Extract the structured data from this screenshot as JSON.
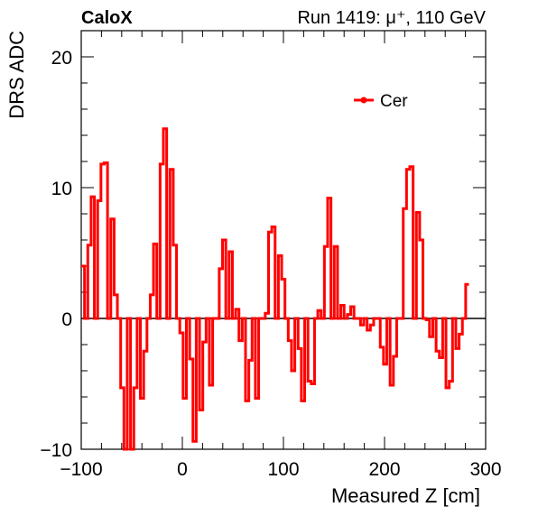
{
  "header": {
    "left_label": "CaloX",
    "right_label": "Run 1419:   μ⁺, 110 GeV"
  },
  "colors": {
    "series": "#ff0000",
    "axis": "#000000",
    "zero_line": "#000000",
    "background": "#ffffff"
  },
  "chart_data": {
    "type": "line",
    "style": "step-histogram",
    "xlabel": "Measured Z [cm]",
    "ylabel": "DRS ADC",
    "xlim": [
      -100,
      300
    ],
    "ylim": [
      -10,
      22
    ],
    "x_ticks": [
      -100,
      0,
      100,
      200,
      300
    ],
    "y_ticks": [
      -10,
      0,
      10,
      20
    ],
    "grid": false,
    "zero_line": true,
    "legend": {
      "position": "top-right",
      "entries": [
        "Cer"
      ]
    },
    "bin_width": 3.25,
    "series": [
      {
        "name": "Cer",
        "x_start": -100,
        "values": [
          4.0,
          0.0,
          5.6,
          9.3,
          0.0,
          9.0,
          11.8,
          11.9,
          0.0,
          7.6,
          1.8,
          0.0,
          -5.3,
          -10.0,
          0.0,
          -10.0,
          -5.3,
          0.0,
          -6.1,
          -2.5,
          0.0,
          1.8,
          5.7,
          0.0,
          11.8,
          14.5,
          0.0,
          11.4,
          5.6,
          0.0,
          -1.1,
          -6.1,
          0.0,
          -3.1,
          -9.4,
          0.0,
          -7.0,
          -1.8,
          0.0,
          -5.1,
          0.0,
          0.0,
          3.8,
          6.0,
          0.0,
          5.1,
          0.0,
          0.7,
          -1.7,
          0.0,
          -6.3,
          -3.2,
          0.0,
          -6.1,
          0.0,
          0.0,
          0.4,
          6.6,
          7.0,
          0.0,
          4.8,
          3.0,
          0.0,
          -1.7,
          -4.0,
          0.0,
          -2.3,
          -6.3,
          0.0,
          -4.8,
          -5.0,
          0.0,
          0.6,
          0.0,
          5.5,
          9.2,
          0.0,
          5.5,
          0.0,
          1.0,
          0.0,
          0.3,
          0.9,
          0.0,
          0.0,
          -0.5,
          0.0,
          -0.9,
          -0.5,
          0.0,
          0.0,
          -2.2,
          -3.5,
          0.0,
          -5.1,
          -2.9,
          0.0,
          0.0,
          8.4,
          11.4,
          11.6,
          0.0,
          8.1,
          6.0,
          0.0,
          -0.1,
          -1.4,
          0.0,
          -2.5,
          -3.0,
          0.0,
          -5.3,
          -4.8,
          0.0,
          -2.3,
          -1.2,
          0.0,
          2.6
        ]
      }
    ]
  }
}
